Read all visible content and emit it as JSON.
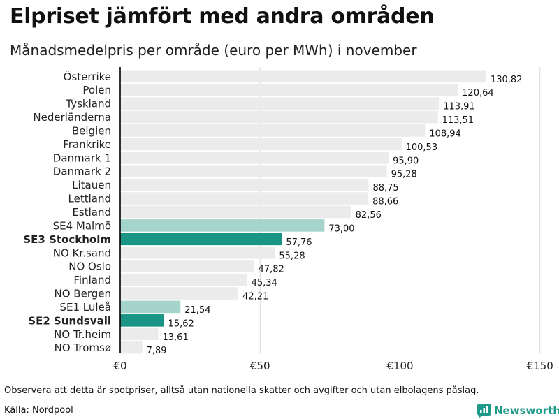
{
  "title": "Elpriset jämfört med andra områden",
  "subtitle": "Månadsmedelpris per område (euro per MWh) i november",
  "footer": {
    "note": "Observera att detta är spotpriser, alltså utan nationella skatter och avgifter och utan elbolagens påslag.",
    "source": "Källa: Nordpool",
    "brand": "Newsworthy"
  },
  "colors": {
    "default_bar": "#ebebeb",
    "highlight_strong": "#1a9485",
    "highlight_light": "#a5d4cd",
    "grid": "#d9d9d9",
    "axis": "#000000",
    "brand": "#1f9a8a"
  },
  "chart_data": {
    "type": "bar",
    "orientation": "horizontal",
    "categories": [
      "Österrike",
      "Polen",
      "Tyskland",
      "Nederländerna",
      "Belgien",
      "Frankrike",
      "Danmark  1",
      "Danmark  2",
      "Litauen",
      "Lettland",
      "Estland",
      "SE4  Malmö",
      "SE3 Stockholm",
      "NO Kr.sand",
      "NO Oslo",
      "Finland",
      "NO Bergen",
      "SE1  Luleå",
      "SE2 Sundsvall",
      "NO Tr.heim",
      "NO Tromsø"
    ],
    "values": [
      130.82,
      120.64,
      113.91,
      113.51,
      108.94,
      100.53,
      95.9,
      95.28,
      88.75,
      88.66,
      82.56,
      73.0,
      57.76,
      55.28,
      47.82,
      45.34,
      42.21,
      21.54,
      15.62,
      13.61,
      7.89
    ],
    "value_labels": [
      "130,82",
      "120,64",
      "113,91",
      "113,51",
      "108,94",
      "100,53",
      "95,90",
      "95,28",
      "88,75",
      "88,66",
      "82,56",
      "73,00",
      "57,76",
      "55,28",
      "47,82",
      "45,34",
      "42,21",
      "21,54",
      "15,62",
      "13,61",
      "7,89"
    ],
    "highlight": [
      "none",
      "none",
      "none",
      "none",
      "none",
      "none",
      "none",
      "none",
      "none",
      "none",
      "none",
      "light",
      "strong",
      "none",
      "none",
      "none",
      "none",
      "light",
      "strong",
      "none",
      "none"
    ],
    "bold_labels": [
      false,
      false,
      false,
      false,
      false,
      false,
      false,
      false,
      false,
      false,
      false,
      false,
      true,
      false,
      false,
      false,
      false,
      false,
      true,
      false,
      false
    ],
    "xlim": [
      0,
      150
    ],
    "xticks": [
      0,
      50,
      100,
      150
    ],
    "xtick_labels": [
      "€0",
      "€50",
      "€100",
      "€150"
    ],
    "grid": true,
    "title": "Elpriset jämfört med andra områden",
    "xlabel": "",
    "ylabel": ""
  }
}
